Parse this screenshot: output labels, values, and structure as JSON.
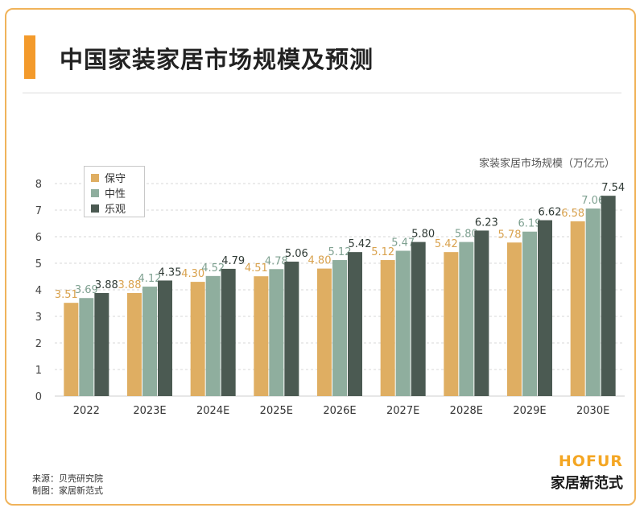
{
  "title": "中国家装家居市场规模及预测",
  "unit_label": "家装家居市场规模（万亿元）",
  "footer": {
    "source": "来源：贝壳研究院",
    "maker": "制图：家居新范式"
  },
  "logo": {
    "top": "HOFUR",
    "bottom": "家居新范式"
  },
  "colors": {
    "conservative": "#dfae62",
    "neutral": "#8fae9e",
    "optimistic": "#4b5a52",
    "frame": "#f0b35a",
    "accent": "#f39a2b"
  },
  "chart_data": {
    "type": "bar",
    "categories": [
      "2022",
      "2023E",
      "2024E",
      "2025E",
      "2026E",
      "2027E",
      "2028E",
      "2029E",
      "2030E"
    ],
    "series": [
      {
        "name": "保守",
        "values": [
          3.51,
          3.88,
          4.3,
          4.51,
          4.8,
          5.12,
          5.42,
          5.78,
          6.58
        ]
      },
      {
        "name": "中性",
        "values": [
          3.69,
          4.12,
          4.52,
          4.78,
          5.12,
          5.47,
          5.8,
          6.19,
          7.06
        ]
      },
      {
        "name": "乐观",
        "values": [
          3.88,
          4.35,
          4.79,
          5.06,
          5.42,
          5.8,
          6.23,
          6.62,
          7.54
        ]
      }
    ],
    "ylim": [
      0,
      8
    ],
    "yticks": [
      "0",
      "1",
      "2",
      "3",
      "4",
      "5",
      "6",
      "7",
      "8"
    ],
    "grid": true,
    "legend_position": "top-left"
  }
}
